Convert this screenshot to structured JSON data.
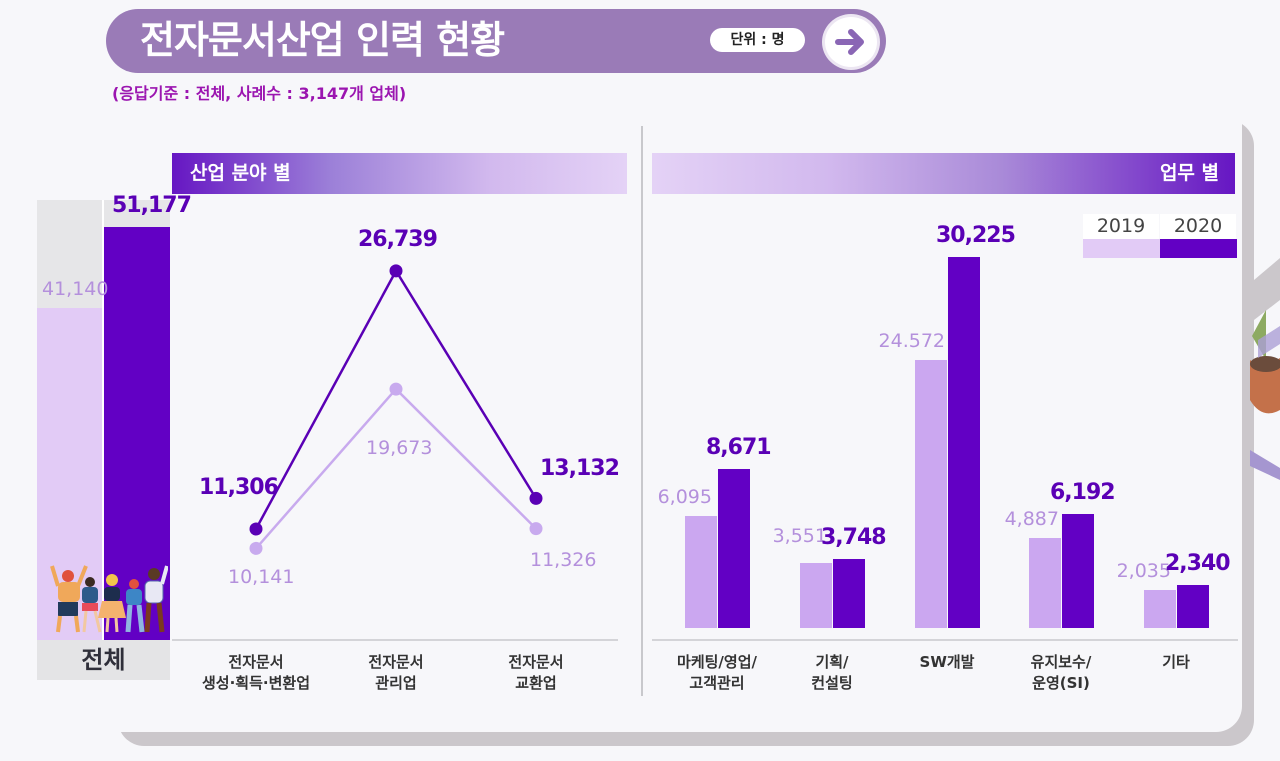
{
  "header": {
    "title": "전자문서산업 인력 현황",
    "unit_badge": "단위 : 명",
    "arrow_icon": "arrow-right-icon",
    "subtitle": "(응답기준 : 전체, 사례수 : 3,147개 업체)"
  },
  "colors": {
    "y2019": "#cba7f0",
    "y2020": "#6200c4",
    "line2019": "#c8aaee",
    "line2020": "#5a00b5",
    "title_bg": "#9a7bb7"
  },
  "total": {
    "label": "전체",
    "v2019_label": "41,140",
    "v2020_label": "51,177"
  },
  "sections": {
    "left_title": "산업 분야 별",
    "right_title": "업무 별"
  },
  "legend": {
    "y2019": "2019",
    "y2020": "2020"
  },
  "chart_data": [
    {
      "type": "bar",
      "title": "전체",
      "categories": [
        "전체"
      ],
      "series": [
        {
          "name": "2019",
          "values": [
            41140
          ]
        },
        {
          "name": "2020",
          "values": [
            51177
          ]
        }
      ],
      "value_labels": {
        "2019": [
          "41,140"
        ],
        "2020": [
          "51,177"
        ]
      },
      "ylim": [
        0,
        60000
      ],
      "grid": false
    },
    {
      "type": "line",
      "title": "산업 분야 별",
      "categories": [
        "전자문서\n생성·획득·변환업",
        "전자문서\n관리업",
        "전자문서\n교환업"
      ],
      "category_lines": [
        [
          "전자문서",
          "생성·획득·변환업"
        ],
        [
          "전자문서",
          "관리업"
        ],
        [
          "전자문서",
          "교환업"
        ]
      ],
      "series": [
        {
          "name": "2019",
          "values": [
            10141,
            19673,
            11326
          ]
        },
        {
          "name": "2020",
          "values": [
            11306,
            26739,
            13132
          ]
        }
      ],
      "value_labels": {
        "2019": [
          "10,141",
          "19,673",
          "11,326"
        ],
        "2020": [
          "11,306",
          "26,739",
          "13,132"
        ]
      },
      "ylim": [
        0,
        30000
      ],
      "grid": false
    },
    {
      "type": "bar",
      "title": "업무 별",
      "categories": [
        "마케팅/영업/\n고객관리",
        "기획/\n컨설팅",
        "SW개발",
        "유지보수/\n운영(SI)",
        "기타"
      ],
      "category_lines": [
        [
          "마케팅/영업/",
          "고객관리"
        ],
        [
          "기획/",
          "컨설팅"
        ],
        [
          "SW개발"
        ],
        [
          "유지보수/",
          "운영(SI)"
        ],
        [
          "기타"
        ]
      ],
      "series": [
        {
          "name": "2019",
          "values": [
            6095,
            3551,
            24572,
            4887,
            2035
          ]
        },
        {
          "name": "2020",
          "values": [
            8671,
            3748,
            30225,
            6192,
            2340
          ]
        }
      ],
      "value_labels": {
        "2019": [
          "6,095",
          "3,551",
          "24.572",
          "4,887",
          "2,035"
        ],
        "2020": [
          "8,671",
          "3,748",
          "30,225",
          "6,192",
          "2,340"
        ]
      },
      "legend": [
        "2019",
        "2020"
      ],
      "legend_position": "top-right",
      "grid": false
    }
  ]
}
